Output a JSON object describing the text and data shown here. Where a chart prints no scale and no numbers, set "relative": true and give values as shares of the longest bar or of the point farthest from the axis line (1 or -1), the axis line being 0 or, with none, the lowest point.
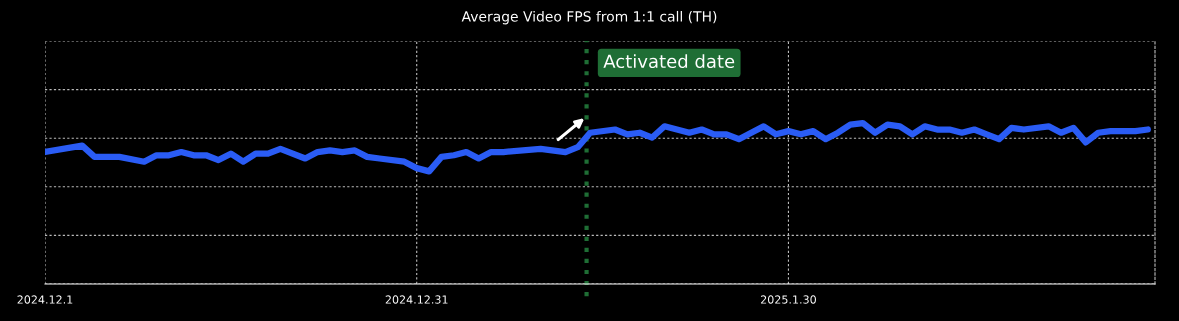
{
  "chart_data": {
    "type": "line",
    "title": "Average Video FPS from 1:1 call (TH)",
    "relative": true,
    "x": [
      "2024-12-01",
      "2024-12-04",
      "2024-12-05",
      "2024-12-07",
      "2024-12-09",
      "2024-12-10",
      "2024-12-11",
      "2024-12-12",
      "2024-12-13",
      "2024-12-14",
      "2024-12-15",
      "2024-12-16",
      "2024-12-17",
      "2024-12-18",
      "2024-12-19",
      "2024-12-20",
      "2024-12-22",
      "2024-12-23",
      "2024-12-24",
      "2024-12-25",
      "2024-12-26",
      "2024-12-27",
      "2024-12-28",
      "2024-12-30",
      "2024-12-31",
      "2025-01-01",
      "2025-01-02",
      "2025-01-03",
      "2025-01-04",
      "2025-01-05",
      "2025-01-06",
      "2025-01-07",
      "2025-01-10",
      "2025-01-12",
      "2025-01-13",
      "2025-01-14",
      "2025-01-16",
      "2025-01-17",
      "2025-01-18",
      "2025-01-19",
      "2025-01-20",
      "2025-01-21",
      "2025-01-22",
      "2025-01-23",
      "2025-01-24",
      "2025-01-25",
      "2025-01-26",
      "2025-01-27",
      "2025-01-28",
      "2025-01-29",
      "2025-01-30",
      "2025-01-31",
      "2025-02-01",
      "2025-02-02",
      "2025-02-03",
      "2025-02-04",
      "2025-02-05",
      "2025-02-06",
      "2025-02-07",
      "2025-02-08",
      "2025-02-09",
      "2025-02-10",
      "2025-02-11",
      "2025-02-12",
      "2025-02-13",
      "2025-02-14",
      "2025-02-15",
      "2025-02-16",
      "2025-02-17",
      "2025-02-18",
      "2025-02-20",
      "2025-02-21",
      "2025-02-22",
      "2025-02-23",
      "2025-02-24",
      "2025-02-25",
      "2025-02-26",
      "2025-02-27",
      "2025-02-28"
    ],
    "series": [
      {
        "color": "#2a5cf5",
        "values": [
          0.82,
          0.86,
          0.79,
          0.79,
          0.76,
          0.8,
          0.8,
          0.82,
          0.8,
          0.8,
          0.77,
          0.81,
          0.76,
          0.81,
          0.81,
          0.84,
          0.78,
          0.82,
          0.83,
          0.82,
          0.83,
          0.79,
          0.78,
          0.76,
          0.72,
          0.7,
          0.79,
          0.8,
          0.82,
          0.78,
          0.82,
          0.82,
          0.84,
          0.82,
          0.85,
          0.94,
          0.96,
          0.93,
          0.94,
          0.91,
          0.98,
          0.96,
          0.94,
          0.96,
          0.93,
          0.93,
          0.9,
          0.94,
          0.98,
          0.93,
          0.95,
          0.93,
          0.95,
          0.9,
          0.94,
          0.99,
          1.0,
          0.94,
          0.99,
          0.98,
          0.93,
          0.98,
          0.96,
          0.96,
          0.94,
          0.96,
          0.93,
          0.9,
          0.97,
          0.96,
          0.98,
          0.94,
          0.97,
          0.88,
          0.94,
          0.95,
          0.95,
          0.95,
          0.96
        ]
      }
    ],
    "xlim": [
      "2024-12-01",
      "2025-02-28T14:00"
    ],
    "xticks": [
      {
        "value": "2024-12-01",
        "label": "2024.12.1"
      },
      {
        "value": "2024-12-31",
        "label": "2024.12.31"
      },
      {
        "value": "2025-01-30",
        "label": "2025.1.30"
      }
    ],
    "grid": true,
    "line_style": "solid",
    "marker": "none",
    "ref_lines": [
      {
        "axis": "x",
        "value": "2025-01-13T17:00",
        "label": "Activated date",
        "color": "#1f6e35",
        "line_style": "dotted"
      }
    ]
  }
}
